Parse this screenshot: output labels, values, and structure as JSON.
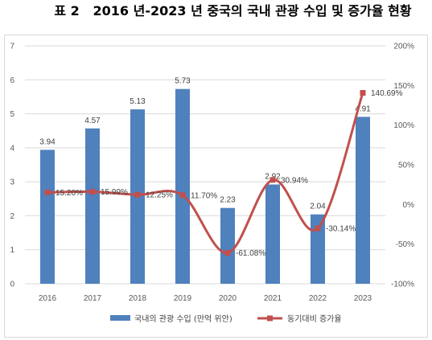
{
  "chart_data": {
    "type": "bar",
    "title": "표 2   2016 년-2023 년 중국의 국내 관광 수입 및 증가율 현황",
    "categories": [
      "2016",
      "2017",
      "2018",
      "2019",
      "2020",
      "2021",
      "2022",
      "2023"
    ],
    "series": [
      {
        "name": "국내의 관광 수입 (만억 위안)",
        "type": "bar",
        "axis": "left",
        "color": "#4f81bd",
        "values": [
          3.94,
          4.57,
          5.13,
          5.73,
          2.23,
          2.92,
          2.04,
          4.91
        ],
        "data_labels": [
          "3.94",
          "4.57",
          "5.13",
          "5.73",
          "2.23",
          "2.92",
          "2.04",
          "4.91"
        ]
      },
      {
        "name": "동기대비 증가율",
        "type": "line",
        "axis": "right",
        "smooth": true,
        "marker": "square",
        "color": "#c0504d",
        "values": [
          15.2,
          15.99,
          12.25,
          11.7,
          -61.08,
          30.94,
          -30.14,
          140.69
        ],
        "data_labels": [
          "15.20%",
          "15.99%",
          "12.25%",
          "11.70%",
          "-61.08%",
          "30.94%",
          "-30.14%",
          "140.69%"
        ]
      }
    ],
    "ylim": [
      0,
      7
    ],
    "y2lim": [
      -100,
      200
    ],
    "yticks": [
      "0",
      "1",
      "2",
      "3",
      "4",
      "5",
      "6",
      "7"
    ],
    "y2ticks": [
      "-100%",
      "-50%",
      "0%",
      "50%",
      "100%",
      "150%",
      "200%"
    ],
    "grid": true,
    "gridline_color": "#d9d9d9",
    "legend": "bottom"
  }
}
